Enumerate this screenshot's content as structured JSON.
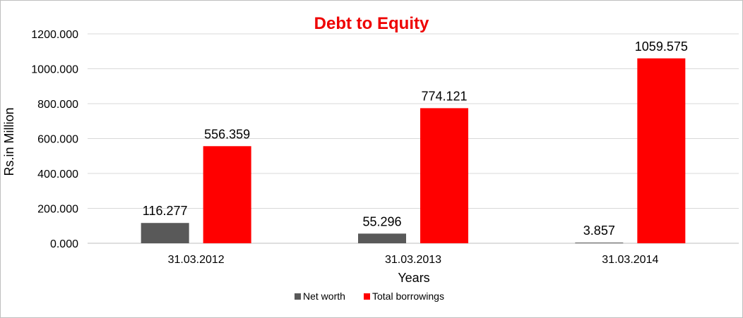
{
  "chart_data": {
    "type": "bar",
    "title": "Debt to Equity",
    "title_color": "#ee0000",
    "xlabel": "Years",
    "ylabel": "Rs.in Million",
    "categories": [
      "31.03.2012",
      "31.03.2013",
      "31.03.2014"
    ],
    "series": [
      {
        "name": "Net worth",
        "color": "#595959",
        "values": [
          116.277,
          55.296,
          3.857
        ],
        "labels": [
          "116.277",
          "55.296",
          "3.857"
        ]
      },
      {
        "name": "Total borrowings",
        "color": "#ff0000",
        "values": [
          556.359,
          774.121,
          1059.575
        ],
        "labels": [
          "556.359",
          "774.121",
          "1059.575"
        ]
      }
    ],
    "ylim": [
      0,
      1200
    ],
    "yticks": [
      0,
      200,
      400,
      600,
      800,
      1000,
      1200
    ],
    "ytick_labels": [
      "0.000",
      "200.000",
      "400.000",
      "600.000",
      "800.000",
      "1000.000",
      "1200.000"
    ],
    "grid": true,
    "legend_position": "bottom"
  }
}
